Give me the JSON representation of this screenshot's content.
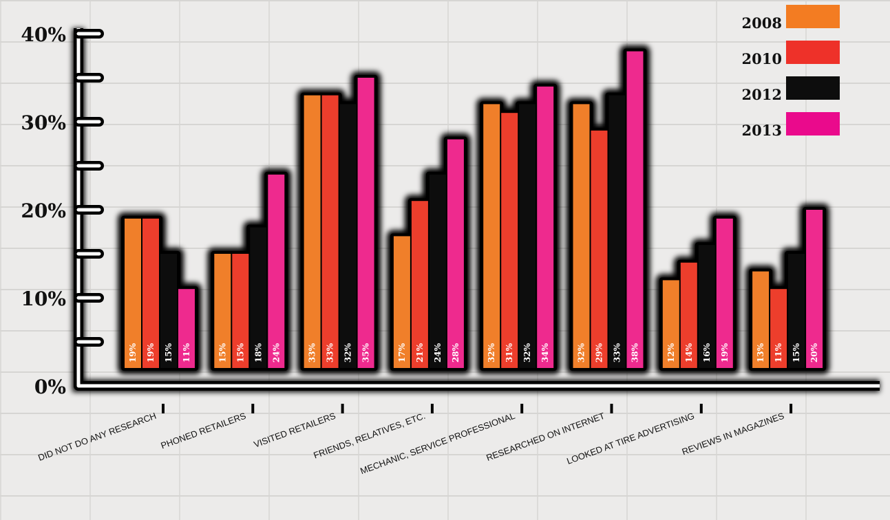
{
  "chart_data": {
    "type": "bar",
    "title": "",
    "xlabel": "",
    "ylabel": "",
    "ylim": [
      0,
      40
    ],
    "y_ticks": [
      "0%",
      "10%",
      "20%",
      "30%",
      "40%"
    ],
    "legend_position": "top-right",
    "categories": [
      "DID NOT DO ANY RESEARCH",
      "PHONED RETAILERS",
      "VISITED RETAILERS",
      "FRIENDS, RELATIVES, ETC.",
      "MECHANIC, SERVICE PROFESSIONAL",
      "RESEARCHED ON INTERNET",
      "LOOKED AT TIRE ADVERTISING",
      "REVIEWS IN MAGAZINES"
    ],
    "series": [
      {
        "name": "2008",
        "color": "#f07f2a",
        "values": [
          19,
          15,
          33,
          17,
          32,
          32,
          12,
          13
        ],
        "labels": [
          "19%",
          "15%",
          "33%",
          "17%",
          "32%",
          "32%",
          "12%",
          "13%"
        ]
      },
      {
        "name": "2010",
        "color": "#ed3e2c",
        "values": [
          19,
          15,
          33,
          21,
          31,
          29,
          14,
          11
        ],
        "labels": [
          "19%",
          "15%",
          "33%",
          "21%",
          "31%",
          "29%",
          "14%",
          "11%"
        ]
      },
      {
        "name": "2012",
        "color": "#0d0d0d",
        "values": [
          15,
          18,
          32,
          24,
          32,
          33,
          16,
          15
        ],
        "labels": [
          "15%",
          "18%",
          "32%",
          "24%",
          "32%",
          "33%",
          "16%",
          "15%"
        ]
      },
      {
        "name": "2013",
        "color": "#ee2a8e",
        "values": [
          11,
          24,
          35,
          28,
          34,
          38,
          19,
          20
        ],
        "labels": [
          "11%",
          "24%",
          "35%",
          "28%",
          "34%",
          "38%",
          "19%",
          "20%"
        ]
      }
    ],
    "legend_colors": [
      "#f37c22",
      "#ee3129",
      "#0d0d0d",
      "#ea0a8c"
    ]
  }
}
